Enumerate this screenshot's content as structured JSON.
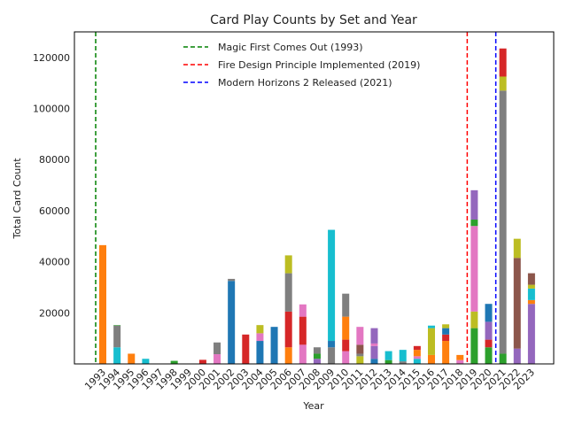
{
  "chart_data": {
    "type": "bar",
    "stacked": true,
    "title": "Card Play Counts by Set and Year",
    "xlabel": "Year",
    "ylabel": "Total Card Count",
    "ylim": [
      0,
      130000
    ],
    "yticks": [
      20000,
      40000,
      60000,
      80000,
      100000,
      120000
    ],
    "grid": false,
    "legend_position": "top-center",
    "categories": [
      "1993",
      "1994",
      "1995",
      "1996",
      "1997",
      "1998",
      "1999",
      "2000",
      "2001",
      "2002",
      "2003",
      "2004",
      "2005",
      "2006",
      "2007",
      "2008",
      "2009",
      "2010",
      "2011",
      "2012",
      "2013",
      "2014",
      "2015",
      "2016",
      "2017",
      "2018",
      "2019",
      "2020",
      "2021",
      "2022",
      "2023"
    ],
    "bars": [
      {
        "year": "1993",
        "segments": [
          {
            "value": 46500,
            "color": "#ff7f0e"
          }
        ]
      },
      {
        "year": "1994",
        "segments": [
          {
            "value": 6500,
            "color": "#17becf"
          },
          {
            "value": 8500,
            "color": "#7f7f7f"
          },
          {
            "value": 200,
            "color": "#2ca02c"
          }
        ]
      },
      {
        "year": "1995",
        "segments": [
          {
            "value": 4000,
            "color": "#ff7f0e"
          }
        ]
      },
      {
        "year": "1996",
        "segments": [
          {
            "value": 2000,
            "color": "#17becf"
          }
        ]
      },
      {
        "year": "1997",
        "segments": []
      },
      {
        "year": "1998",
        "segments": [
          {
            "value": 1200,
            "color": "#2ca02c"
          }
        ]
      },
      {
        "year": "1999",
        "segments": []
      },
      {
        "year": "2000",
        "segments": [
          {
            "value": 1600,
            "color": "#d62728"
          }
        ]
      },
      {
        "year": "2001",
        "segments": [
          {
            "value": 3800,
            "color": "#e377c2"
          },
          {
            "value": 4600,
            "color": "#7f7f7f"
          }
        ]
      },
      {
        "year": "2002",
        "segments": [
          {
            "value": 32500,
            "color": "#1f77b4"
          },
          {
            "value": 800,
            "color": "#7f7f7f"
          }
        ]
      },
      {
        "year": "2003",
        "segments": [
          {
            "value": 11500,
            "color": "#d62728"
          }
        ]
      },
      {
        "year": "2004",
        "segments": [
          {
            "value": 9000,
            "color": "#1f77b4"
          },
          {
            "value": 3000,
            "color": "#e377c2"
          },
          {
            "value": 3200,
            "color": "#bcbd22"
          }
        ]
      },
      {
        "year": "2005",
        "segments": [
          {
            "value": 14500,
            "color": "#1f77b4"
          }
        ]
      },
      {
        "year": "2006",
        "segments": [
          {
            "value": 6500,
            "color": "#ff7f0e"
          },
          {
            "value": 14000,
            "color": "#d62728"
          },
          {
            "value": 15000,
            "color": "#7f7f7f"
          },
          {
            "value": 7000,
            "color": "#bcbd22"
          }
        ]
      },
      {
        "year": "2007",
        "segments": [
          {
            "value": 7500,
            "color": "#e377c2"
          },
          {
            "value": 11000,
            "color": "#d62728"
          },
          {
            "value": 4800,
            "color": "#e377c2"
          }
        ]
      },
      {
        "year": "2008",
        "segments": [
          {
            "value": 2000,
            "color": "#9467bd"
          },
          {
            "value": 2000,
            "color": "#2ca02c"
          },
          {
            "value": 2500,
            "color": "#7f7f7f"
          }
        ]
      },
      {
        "year": "2009",
        "segments": [
          {
            "value": 6500,
            "color": "#7f7f7f"
          },
          {
            "value": 2500,
            "color": "#1f77b4"
          },
          {
            "value": 43500,
            "color": "#17becf"
          }
        ]
      },
      {
        "year": "2010",
        "segments": [
          {
            "value": 5000,
            "color": "#e377c2"
          },
          {
            "value": 4500,
            "color": "#d62728"
          },
          {
            "value": 9000,
            "color": "#ff7f0e"
          },
          {
            "value": 9000,
            "color": "#7f7f7f"
          }
        ]
      },
      {
        "year": "2011",
        "segments": [
          {
            "value": 3000,
            "color": "#bcbd22"
          },
          {
            "value": 1000,
            "color": "#7f7f7f"
          },
          {
            "value": 3500,
            "color": "#8c564b"
          },
          {
            "value": 7000,
            "color": "#e377c2"
          }
        ]
      },
      {
        "year": "2012",
        "segments": [
          {
            "value": 2000,
            "color": "#1f77b4"
          },
          {
            "value": 5000,
            "color": "#9467bd"
          },
          {
            "value": 1000,
            "color": "#e377c2"
          },
          {
            "value": 6000,
            "color": "#9467bd"
          }
        ]
      },
      {
        "year": "2013",
        "segments": [
          {
            "value": 1500,
            "color": "#2ca02c"
          },
          {
            "value": 3500,
            "color": "#17becf"
          }
        ]
      },
      {
        "year": "2014",
        "segments": [
          {
            "value": 1000,
            "color": "#7f7f7f"
          },
          {
            "value": 4500,
            "color": "#17becf"
          }
        ]
      },
      {
        "year": "2015",
        "segments": [
          {
            "value": 2000,
            "color": "#17becf"
          },
          {
            "value": 1000,
            "color": "#e377c2"
          },
          {
            "value": 2500,
            "color": "#ff7f0e"
          },
          {
            "value": 1500,
            "color": "#d62728"
          }
        ]
      },
      {
        "year": "2016",
        "segments": [
          {
            "value": 3500,
            "color": "#ff7f0e"
          },
          {
            "value": 10500,
            "color": "#bcbd22"
          },
          {
            "value": 1000,
            "color": "#17becf"
          }
        ]
      },
      {
        "year": "2017",
        "segments": [
          {
            "value": 9000,
            "color": "#ff7f0e"
          },
          {
            "value": 2500,
            "color": "#d62728"
          },
          {
            "value": 2500,
            "color": "#1f77b4"
          },
          {
            "value": 1500,
            "color": "#bcbd22"
          }
        ]
      },
      {
        "year": "2018",
        "segments": [
          {
            "value": 1500,
            "color": "#e377c2"
          },
          {
            "value": 2000,
            "color": "#ff7f0e"
          }
        ]
      },
      {
        "year": "2019",
        "segments": [
          {
            "value": 14000,
            "color": "#2ca02c"
          },
          {
            "value": 6500,
            "color": "#bcbd22"
          },
          {
            "value": 33500,
            "color": "#e377c2"
          },
          {
            "value": 2500,
            "color": "#2ca02c"
          },
          {
            "value": 11500,
            "color": "#9467bd"
          }
        ]
      },
      {
        "year": "2020",
        "segments": [
          {
            "value": 6500,
            "color": "#2ca02c"
          },
          {
            "value": 3000,
            "color": "#d62728"
          },
          {
            "value": 7000,
            "color": "#9467bd"
          },
          {
            "value": 7000,
            "color": "#1f77b4"
          }
        ]
      },
      {
        "year": "2021",
        "segments": [
          {
            "value": 4000,
            "color": "#2ca02c"
          },
          {
            "value": 103000,
            "color": "#7f7f7f"
          },
          {
            "value": 5500,
            "color": "#bcbd22"
          },
          {
            "value": 11000,
            "color": "#d62728"
          }
        ]
      },
      {
        "year": "2022",
        "segments": [
          {
            "value": 6000,
            "color": "#9467bd"
          },
          {
            "value": 35500,
            "color": "#8c564b"
          },
          {
            "value": 7500,
            "color": "#bcbd22"
          }
        ]
      },
      {
        "year": "2023",
        "segments": [
          {
            "value": 23500,
            "color": "#9467bd"
          },
          {
            "value": 1500,
            "color": "#ff7f0e"
          },
          {
            "value": 4500,
            "color": "#17becf"
          },
          {
            "value": 1500,
            "color": "#bcbd22"
          },
          {
            "value": 4500,
            "color": "#8c564b"
          }
        ]
      }
    ],
    "vlines": [
      {
        "year": "1993",
        "label": "Magic First Comes Out (1993)",
        "color": "#008000"
      },
      {
        "year": "2019",
        "label": "Fire Design Principle Implemented (2019)",
        "color": "#ff0000"
      },
      {
        "year": "2021",
        "label": "Modern Horizons 2 Released (2021)",
        "color": "#0000ff"
      }
    ]
  }
}
